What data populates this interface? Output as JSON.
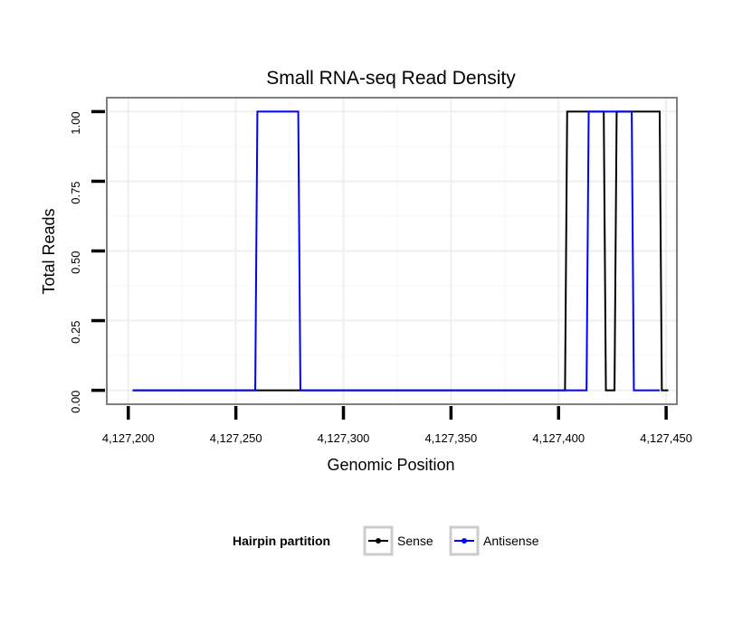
{
  "chart_data": {
    "type": "line",
    "title": "Small RNA-seq Read Density",
    "xlabel": "Genomic Position",
    "ylabel": "Total Reads",
    "xlim": [
      4127190,
      4127455
    ],
    "ylim": [
      -0.05,
      1.05
    ],
    "x_ticks": [
      4127200,
      4127250,
      4127300,
      4127350,
      4127400,
      4127450
    ],
    "x_tick_labels": [
      "4,127,200",
      "4,127,250",
      "4,127,300",
      "4,127,350",
      "4,127,400",
      "4,127,450"
    ],
    "y_ticks": [
      0,
      0.25,
      0.5,
      0.75,
      1
    ],
    "y_tick_labels": [
      "0.00",
      "0.25",
      "0.50",
      "0.75",
      "1.00"
    ],
    "grid": true,
    "legend": {
      "title": "Hairpin partition",
      "position": "bottom"
    },
    "series": [
      {
        "name": "Sense",
        "color": "#000000",
        "x": [
          4127202,
          4127403,
          4127404,
          4127421,
          4127422,
          4127426,
          4127427,
          4127447,
          4127448,
          4127451
        ],
        "y": [
          0,
          0,
          1,
          1,
          0,
          0,
          1,
          1,
          0,
          0
        ]
      },
      {
        "name": "Antisense",
        "color": "#0000ff",
        "x": [
          4127202,
          4127259,
          4127260,
          4127279,
          4127280,
          4127413,
          4127414,
          4127434,
          4127435,
          4127447
        ],
        "y": [
          0,
          0,
          1,
          1,
          0,
          0,
          1,
          1,
          0,
          0
        ]
      }
    ]
  }
}
